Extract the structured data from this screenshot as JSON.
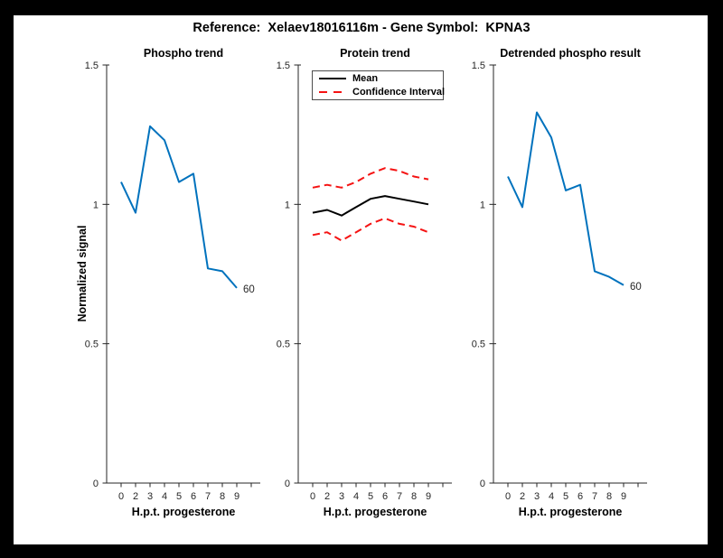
{
  "title": "Reference:  Xelaev18016116m - Gene Symbol:  KPNA3",
  "colors": {
    "line_blue": "#0072BD",
    "ci_red": "#F51313",
    "mean_black": "#000000",
    "axis": "#262626",
    "tick_text": "#262626",
    "figure_bg": "#FFFFFF",
    "frame_bg": "#000000"
  },
  "shared_axes": {
    "ylabel": "Normalized signal",
    "xlabel": "H.p.t. progesterone",
    "x_tick_labels": [
      "0",
      "2",
      "3",
      "4",
      "5",
      "6",
      "7",
      "8",
      "9"
    ],
    "y_tick_labels": [
      "0",
      "0.5",
      "1",
      "1.5"
    ],
    "y_ticks": [
      0,
      0.5,
      1,
      1.5
    ],
    "ylim": [
      0,
      1.5
    ]
  },
  "legend": {
    "entries": [
      {
        "label": "Mean",
        "style": "solid",
        "color": "#000000"
      },
      {
        "label": "Confidence Interval",
        "style": "dashed",
        "color": "#F51313"
      }
    ],
    "position": "northwest"
  },
  "chart_data": [
    {
      "type": "line",
      "title": "Phospho trend",
      "xlabel": "H.p.t. progesterone",
      "ylabel": "Normalized signal",
      "x": [
        0,
        2,
        3,
        4,
        5,
        6,
        7,
        8,
        9
      ],
      "x_tick_labels": [
        "0",
        "2",
        "3",
        "4",
        "5",
        "6",
        "7",
        "8",
        "9"
      ],
      "y_ticks": [
        0,
        0.5,
        1,
        1.5
      ],
      "ylim": [
        0,
        1.5
      ],
      "grid": false,
      "series": [
        {
          "name": "phospho",
          "color": "#0072BD",
          "dash": null,
          "values": [
            1.08,
            0.97,
            1.28,
            1.23,
            1.08,
            1.11,
            0.77,
            0.76,
            0.7
          ]
        }
      ],
      "annotation": {
        "text": "60",
        "at": "last-point"
      }
    },
    {
      "type": "line",
      "title": "Protein trend",
      "xlabel": "H.p.t. progesterone",
      "x": [
        0,
        2,
        3,
        4,
        5,
        6,
        7,
        8,
        9
      ],
      "x_tick_labels": [
        "0",
        "2",
        "3",
        "4",
        "5",
        "6",
        "7",
        "8",
        "9"
      ],
      "y_ticks": [
        0,
        0.5,
        1,
        1.5
      ],
      "ylim": [
        0,
        1.5
      ],
      "grid": false,
      "legend_position": "northwest",
      "series": [
        {
          "name": "ci-upper",
          "color": "#F51313",
          "dash": "8 5",
          "values": [
            1.06,
            1.07,
            1.06,
            1.08,
            1.11,
            1.13,
            1.12,
            1.1,
            1.09
          ]
        },
        {
          "name": "ci-lower",
          "color": "#F51313",
          "dash": "8 5",
          "values": [
            0.89,
            0.9,
            0.87,
            0.9,
            0.93,
            0.95,
            0.93,
            0.92,
            0.9
          ]
        },
        {
          "name": "mean",
          "color": "#000000",
          "dash": null,
          "values": [
            0.97,
            0.98,
            0.96,
            0.99,
            1.02,
            1.03,
            1.02,
            1.01,
            1.0
          ]
        }
      ],
      "annotation": null
    },
    {
      "type": "line",
      "title": "Detrended phospho result",
      "xlabel": "H.p.t. progesterone",
      "x": [
        0,
        2,
        3,
        4,
        5,
        6,
        7,
        8,
        9
      ],
      "x_tick_labels": [
        "0",
        "2",
        "3",
        "4",
        "5",
        "6",
        "7",
        "8",
        "9"
      ],
      "y_ticks": [
        0,
        0.5,
        1,
        1.5
      ],
      "ylim": [
        0,
        1.5
      ],
      "grid": false,
      "series": [
        {
          "name": "detrended",
          "color": "#0072BD",
          "dash": null,
          "values": [
            1.1,
            0.99,
            1.33,
            1.24,
            1.05,
            1.07,
            0.76,
            0.74,
            0.71
          ]
        }
      ],
      "annotation": {
        "text": "60",
        "at": "last-point"
      }
    }
  ]
}
